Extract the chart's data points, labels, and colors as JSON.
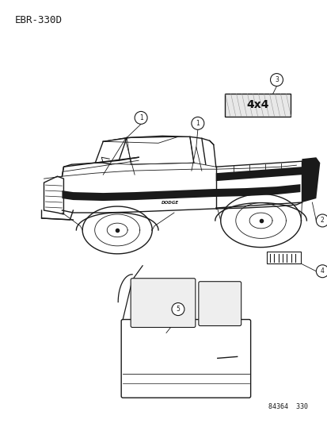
{
  "title": "EBR-330D",
  "background_color": "#ffffff",
  "line_color": "#1a1a1a",
  "footer_text": "84364  330",
  "fig_width": 4.14,
  "fig_height": 5.33,
  "dpi": 100
}
